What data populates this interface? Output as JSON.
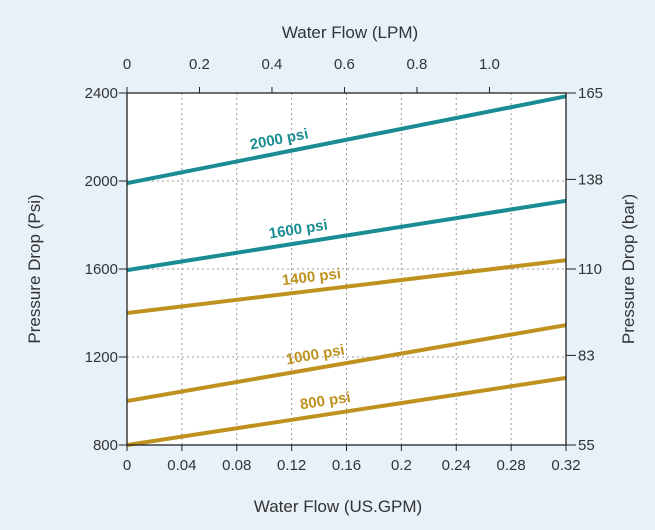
{
  "chart_data": {
    "type": "line",
    "background_color": "#e6f1f9",
    "grid": true,
    "x_bottom": {
      "label": "Water Flow (US.GPM)",
      "range": [
        0,
        0.32
      ],
      "ticks": [
        "0",
        "0.04",
        "0.08",
        "0.12",
        "0.16",
        "0.2",
        "0.24",
        "0.28",
        "0.32"
      ]
    },
    "x_top": {
      "label": "Water Flow (LPM)",
      "range": [
        0,
        1.2112
      ],
      "ticks": [
        "0",
        "0.2",
        "0.4",
        "0.6",
        "0.8",
        "1.0"
      ]
    },
    "y_left": {
      "label": "Pressure Drop (Psi)",
      "range": [
        800,
        2400
      ],
      "ticks": [
        "800",
        "1200",
        "1600",
        "2000",
        "2400"
      ]
    },
    "y_right": {
      "label": "Pressure Drop (bar)",
      "range": [
        55,
        165
      ],
      "ticks": [
        "55",
        "83",
        "110",
        "138",
        "165"
      ]
    },
    "series": [
      {
        "name": "2000 psi",
        "color": "#1a8c93",
        "x": [
          0,
          0.32
        ],
        "y": [
          1990,
          2385
        ]
      },
      {
        "name": "1600 psi",
        "color": "#1a8c93",
        "x": [
          0,
          0.32
        ],
        "y": [
          1595,
          1910
        ]
      },
      {
        "name": "1400 psi",
        "color": "#bf921f",
        "x": [
          0,
          0.32
        ],
        "y": [
          1400,
          1640
        ]
      },
      {
        "name": "1000 psi",
        "color": "#bf921f",
        "x": [
          0,
          0.32
        ],
        "y": [
          1000,
          1345
        ]
      },
      {
        "name": "800 psi",
        "color": "#bf921f",
        "x": [
          0,
          0.32
        ],
        "y": [
          800,
          1105
        ]
      }
    ]
  }
}
